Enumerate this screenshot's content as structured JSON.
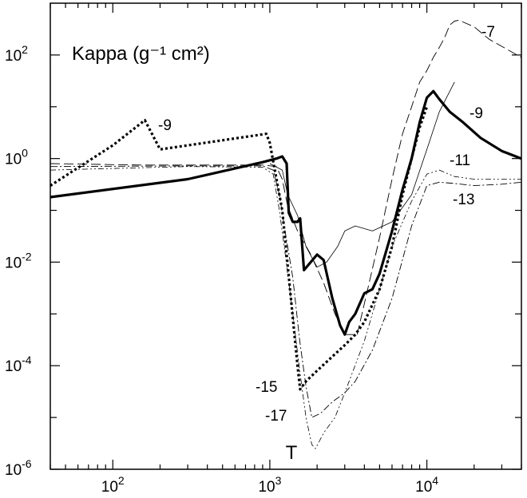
{
  "chart_data": {
    "type": "line",
    "title": "Kappa (g⁻¹ cm²)",
    "xlabel": "T",
    "ylabel": "",
    "x_scale": "log",
    "y_scale": "log",
    "xlim": [
      40,
      40000
    ],
    "ylim": [
      1e-06,
      1000
    ],
    "x_ticks": [
      {
        "value": 100,
        "base": "10",
        "exp": "2"
      },
      {
        "value": 1000,
        "base": "10",
        "exp": "3"
      },
      {
        "value": 10000,
        "base": "10",
        "exp": "4"
      }
    ],
    "y_ticks": [
      {
        "value": 100,
        "base": "10",
        "exp": "2"
      },
      {
        "value": 1,
        "base": "10",
        "exp": "0"
      },
      {
        "value": 0.01,
        "base": "10",
        "exp": "-2"
      },
      {
        "value": 0.0001,
        "base": "10",
        "exp": "-4"
      },
      {
        "value": 1e-06,
        "base": "10",
        "exp": "-6"
      }
    ],
    "grid": false,
    "legend": "none",
    "series": [
      {
        "style": "thin-dash",
        "x": [
          40,
          150,
          900,
          1100,
          1200,
          1300,
          1500,
          1800,
          2200,
          2600,
          3000,
          3600,
          4200,
          5000,
          6000,
          7000,
          8000,
          9000,
          10000,
          11000,
          12000,
          13000,
          14000,
          15000,
          16000,
          20000,
          25000,
          40000
        ],
        "y": [
          0.8,
          0.75,
          0.75,
          0.7,
          0.4,
          0.12,
          0.04,
          0.015,
          0.004,
          0.001,
          0.0004,
          0.0004,
          0.003,
          0.03,
          0.4,
          3,
          10,
          30,
          50,
          90,
          140,
          220,
          380,
          450,
          470,
          350,
          200,
          90
        ]
      },
      {
        "style": "thin-solid",
        "x": [
          1000,
          1200,
          1300,
          1500,
          1700,
          2000,
          2300,
          2700,
          3000,
          3500,
          4500,
          6000,
          8000,
          10000,
          12000,
          15000
        ],
        "y": [
          0.8,
          0.6,
          0.2,
          0.08,
          0.02,
          0.008,
          0.01,
          0.02,
          0.04,
          0.05,
          0.04,
          0.06,
          0.2,
          1.5,
          8,
          30
        ]
      },
      {
        "style": "thick-solid",
        "x": [
          40,
          300,
          900,
          1100,
          1200,
          1280,
          1320,
          1400,
          1500,
          1560,
          1650,
          2000,
          2200,
          2500,
          2800,
          3000,
          3200,
          3500,
          4000,
          4500,
          5000,
          6000,
          7000,
          8000,
          9000,
          10000,
          11000,
          12000,
          14000,
          17000,
          22000,
          30000,
          40000
        ],
        "y": [
          0.18,
          0.4,
          0.85,
          1,
          1.1,
          0.8,
          0.09,
          0.06,
          0.06,
          0.07,
          0.007,
          0.014,
          0.011,
          0.002,
          0.0006,
          0.0004,
          0.0007,
          0.001,
          0.0025,
          0.003,
          0.006,
          0.04,
          0.25,
          1,
          5,
          15,
          20,
          14,
          8,
          5,
          2.5,
          1.4,
          1
        ]
      },
      {
        "style": "dotted",
        "x": [
          40,
          100,
          160,
          200,
          950,
          1000,
          1200,
          1500,
          1560,
          1700,
          2000,
          2500,
          3000,
          3500,
          4000,
          5000,
          6000,
          7000,
          8000,
          9000,
          10000
        ],
        "y": [
          0.3,
          1.8,
          5.5,
          1.5,
          3,
          2,
          0.1,
          0.0001,
          3.5e-05,
          5e-05,
          8e-05,
          0.00015,
          0.00025,
          0.0004,
          0.0007,
          0.003,
          0.02,
          0.2,
          1,
          4,
          10
        ]
      },
      {
        "style": "dash-dot",
        "x": [
          40,
          300,
          900,
          1050,
          1150,
          1250,
          1400,
          1550,
          1700,
          1850,
          2100,
          2500,
          3000,
          3500,
          4500,
          6000,
          8000,
          10000,
          12000,
          15000,
          20000,
          30000,
          40000
        ],
        "y": [
          0.7,
          0.72,
          0.72,
          0.6,
          0.2,
          0.04,
          0.005,
          0.0003,
          4e-05,
          1e-05,
          1.2e-05,
          2e-05,
          3e-05,
          5e-05,
          0.0002,
          0.002,
          0.05,
          0.3,
          0.35,
          0.33,
          0.3,
          0.32,
          0.35
        ]
      },
      {
        "style": "dash-dot-dot",
        "x": [
          40,
          300,
          900,
          1050,
          1150,
          1250,
          1400,
          1550,
          1700,
          1850,
          1950,
          2200,
          2600,
          3000,
          4000,
          5000,
          6000,
          8000,
          10000,
          12000,
          15000,
          20000,
          30000,
          40000
        ],
        "y": [
          0.6,
          0.7,
          0.68,
          0.5,
          0.1,
          0.015,
          0.001,
          8e-05,
          1e-05,
          3e-06,
          2.5e-06,
          5e-06,
          1e-05,
          3e-05,
          0.0003,
          0.003,
          0.02,
          0.15,
          0.5,
          0.6,
          0.45,
          0.4,
          0.4,
          0.4
        ]
      }
    ],
    "annotations": [
      "-7",
      "-9",
      "-9",
      "-11",
      "-13",
      "-15",
      "-17"
    ]
  }
}
